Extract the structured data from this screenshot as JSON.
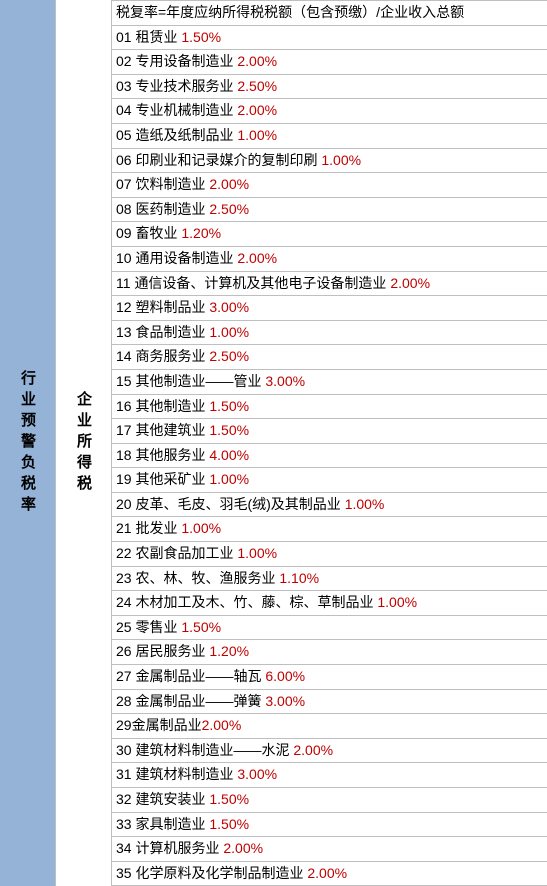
{
  "left_label": "行业预警负税率",
  "mid_label": "企业所得税",
  "header": "税复率=年度应纳所得税税额（包含预缴）/企业收入总额",
  "rows": [
    {
      "n": "01",
      "name": "租赁业",
      "rate": "1.50%"
    },
    {
      "n": "02",
      "name": "专用设备制造业",
      "rate": "2.00%"
    },
    {
      "n": "03",
      "name": "专业技术服务业",
      "rate": "2.50%"
    },
    {
      "n": "04",
      "name": "专业机械制造业",
      "rate": "2.00%"
    },
    {
      "n": "05",
      "name": "造纸及纸制品业",
      "rate": "1.00%"
    },
    {
      "n": "06",
      "name": "印刷业和记录媒介的复制印刷",
      "rate": "1.00%"
    },
    {
      "n": "07",
      "name": "饮料制造业",
      "rate": "2.00%"
    },
    {
      "n": "08",
      "name": "医药制造业",
      "rate": "2.50%"
    },
    {
      "n": "09",
      "name": "畜牧业",
      "rate": "1.20%"
    },
    {
      "n": "10",
      "name": "通用设备制造业",
      "rate": "2.00%"
    },
    {
      "n": "11",
      "name": "通信设备、计算机及其他电子设备制造业",
      "rate": "2.00%"
    },
    {
      "n": "12",
      "name": "塑料制品业",
      "rate": "3.00%"
    },
    {
      "n": "13",
      "name": "食品制造业",
      "rate": "1.00%"
    },
    {
      "n": "14",
      "name": "商务服务业",
      "rate": "2.50%"
    },
    {
      "n": "15",
      "name": "其他制造业——管业",
      "rate": "3.00%"
    },
    {
      "n": "16",
      "name": "其他制造业",
      "rate": "1.50%"
    },
    {
      "n": "17",
      "name": "其他建筑业",
      "rate": "1.50%"
    },
    {
      "n": "18",
      "name": "其他服务业",
      "rate": "4.00%"
    },
    {
      "n": "19",
      "name": "其他采矿业",
      "rate": "1.00%"
    },
    {
      "n": "20",
      "name": "皮革、毛皮、羽毛(绒)及其制品业",
      "rate": "1.00%"
    },
    {
      "n": "21",
      "name": "批发业",
      "rate": "1.00%"
    },
    {
      "n": "22",
      "name": "农副食品加工业",
      "rate": "1.00%"
    },
    {
      "n": "23",
      "name": "农、林、牧、渔服务业",
      "rate": "1.10%"
    },
    {
      "n": "24",
      "name": "木材加工及木、竹、藤、棕、草制品业",
      "rate": "1.00%"
    },
    {
      "n": "25",
      "name": "零售业",
      "rate": "1.50%"
    },
    {
      "n": "26",
      "name": "居民服务业",
      "rate": "1.20%"
    },
    {
      "n": "27",
      "name": "金属制品业——轴瓦",
      "rate": "6.00%"
    },
    {
      "n": "28",
      "name": "金属制品业——弹簧",
      "rate": "3.00%"
    },
    {
      "n": "29",
      "name": "金属制品业",
      "rate": "2.00%",
      "nospace": true
    },
    {
      "n": "30",
      "name": "建筑材料制造业——水泥",
      "rate": "2.00%"
    },
    {
      "n": "31",
      "name": "建筑材料制造业",
      "rate": "3.00%"
    },
    {
      "n": "32",
      "name": "建筑安装业",
      "rate": "1.50%"
    },
    {
      "n": "33",
      "name": "家具制造业",
      "rate": "1.50%"
    },
    {
      "n": "34",
      "name": "计算机服务业",
      "rate": "2.00%"
    },
    {
      "n": "35",
      "name": "化学原料及化学制品制造业",
      "rate": "2.00%"
    }
  ],
  "colors": {
    "left_bg": "#95b3d7",
    "rate": "#c00000",
    "border": "#bfbfbf"
  }
}
